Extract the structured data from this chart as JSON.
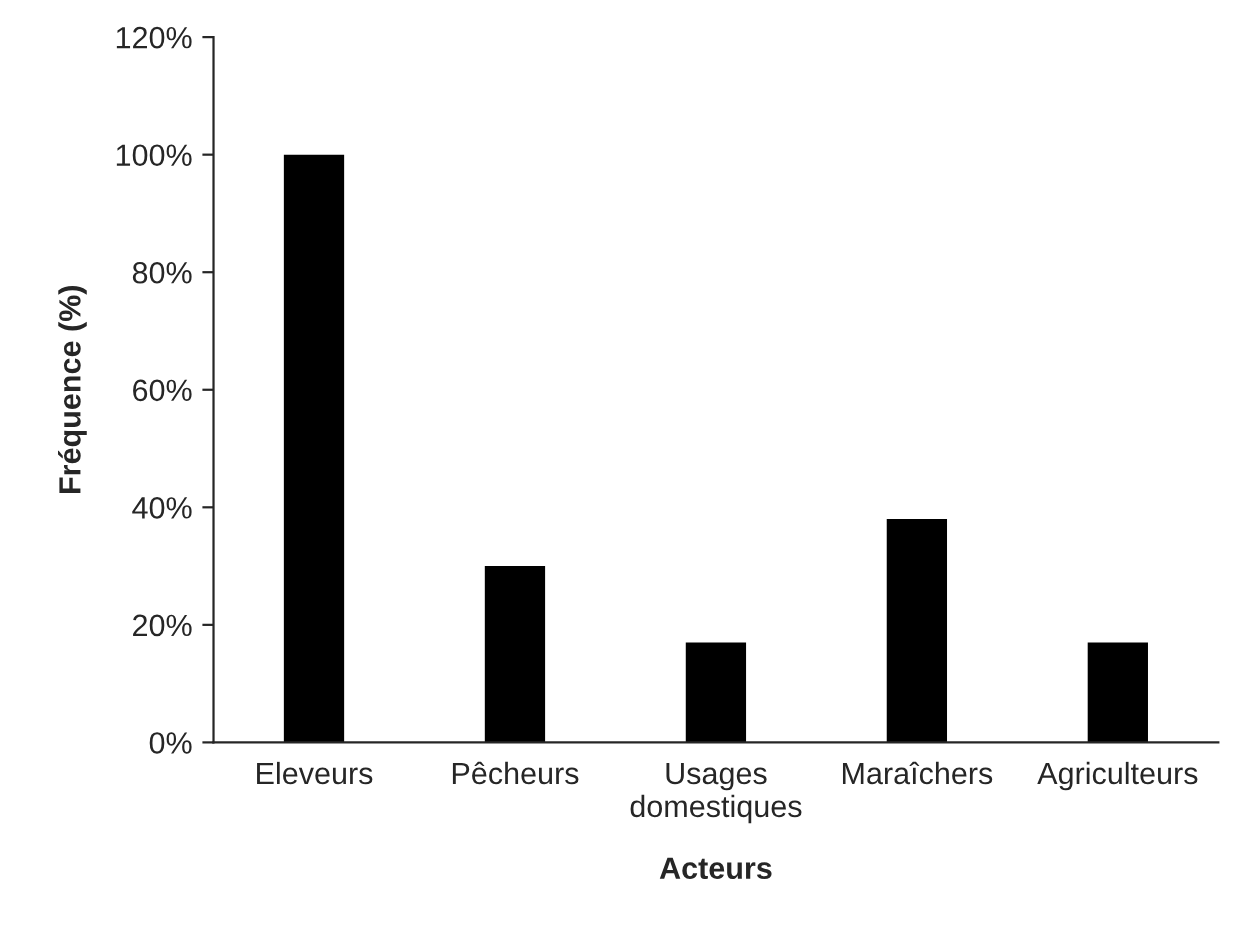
{
  "chart_data": {
    "type": "bar",
    "xlabel": "Acteurs",
    "ylabel": "Fréquence (%)",
    "categories": [
      "Eleveurs",
      "Pêcheurs",
      "Usages\ndomestiques",
      "Maraîchers",
      "Agriculteurs"
    ],
    "values": [
      100,
      30,
      17,
      38,
      17
    ],
    "color": "#000000",
    "ylim": [
      0,
      120
    ],
    "yticks": [
      {
        "value": 0,
        "label": "0%"
      },
      {
        "value": 20,
        "label": "20%"
      },
      {
        "value": 40,
        "label": "40%"
      },
      {
        "value": 60,
        "label": "60%"
      },
      {
        "value": 80,
        "label": "80%"
      },
      {
        "value": 100,
        "label": "100%"
      },
      {
        "value": 120,
        "label": "120%"
      }
    ],
    "grid": false,
    "legend": false
  }
}
